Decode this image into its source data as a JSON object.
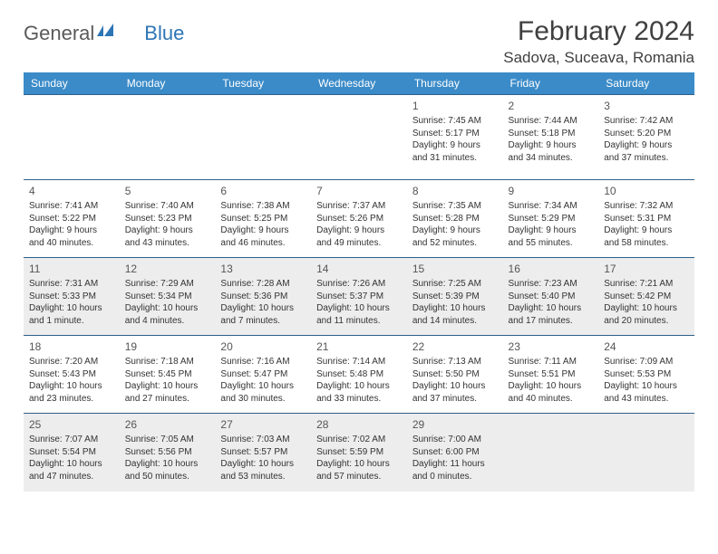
{
  "logo": {
    "text_general": "General",
    "text_blue": "Blue"
  },
  "header": {
    "month_title": "February 2024",
    "location": "Sadova, Suceava, Romania"
  },
  "colors": {
    "header_bg": "#3b8bc8",
    "header_text": "#ffffff",
    "row_border": "#2e5f8a",
    "shade_bg": "#ededed",
    "body_text": "#333333",
    "title_text": "#404040"
  },
  "dayheaders": [
    "Sunday",
    "Monday",
    "Tuesday",
    "Wednesday",
    "Thursday",
    "Friday",
    "Saturday"
  ],
  "weeks": [
    [
      {
        "day": "",
        "lines": []
      },
      {
        "day": "",
        "lines": []
      },
      {
        "day": "",
        "lines": []
      },
      {
        "day": "",
        "lines": []
      },
      {
        "day": "1",
        "lines": [
          "Sunrise: 7:45 AM",
          "Sunset: 5:17 PM",
          "Daylight: 9 hours and 31 minutes."
        ]
      },
      {
        "day": "2",
        "lines": [
          "Sunrise: 7:44 AM",
          "Sunset: 5:18 PM",
          "Daylight: 9 hours and 34 minutes."
        ]
      },
      {
        "day": "3",
        "lines": [
          "Sunrise: 7:42 AM",
          "Sunset: 5:20 PM",
          "Daylight: 9 hours and 37 minutes."
        ]
      }
    ],
    [
      {
        "day": "4",
        "lines": [
          "Sunrise: 7:41 AM",
          "Sunset: 5:22 PM",
          "Daylight: 9 hours and 40 minutes."
        ]
      },
      {
        "day": "5",
        "lines": [
          "Sunrise: 7:40 AM",
          "Sunset: 5:23 PM",
          "Daylight: 9 hours and 43 minutes."
        ]
      },
      {
        "day": "6",
        "lines": [
          "Sunrise: 7:38 AM",
          "Sunset: 5:25 PM",
          "Daylight: 9 hours and 46 minutes."
        ]
      },
      {
        "day": "7",
        "lines": [
          "Sunrise: 7:37 AM",
          "Sunset: 5:26 PM",
          "Daylight: 9 hours and 49 minutes."
        ]
      },
      {
        "day": "8",
        "lines": [
          "Sunrise: 7:35 AM",
          "Sunset: 5:28 PM",
          "Daylight: 9 hours and 52 minutes."
        ]
      },
      {
        "day": "9",
        "lines": [
          "Sunrise: 7:34 AM",
          "Sunset: 5:29 PM",
          "Daylight: 9 hours and 55 minutes."
        ]
      },
      {
        "day": "10",
        "lines": [
          "Sunrise: 7:32 AM",
          "Sunset: 5:31 PM",
          "Daylight: 9 hours and 58 minutes."
        ]
      }
    ],
    [
      {
        "day": "11",
        "lines": [
          "Sunrise: 7:31 AM",
          "Sunset: 5:33 PM",
          "Daylight: 10 hours and 1 minute."
        ]
      },
      {
        "day": "12",
        "lines": [
          "Sunrise: 7:29 AM",
          "Sunset: 5:34 PM",
          "Daylight: 10 hours and 4 minutes."
        ]
      },
      {
        "day": "13",
        "lines": [
          "Sunrise: 7:28 AM",
          "Sunset: 5:36 PM",
          "Daylight: 10 hours and 7 minutes."
        ]
      },
      {
        "day": "14",
        "lines": [
          "Sunrise: 7:26 AM",
          "Sunset: 5:37 PM",
          "Daylight: 10 hours and 11 minutes."
        ]
      },
      {
        "day": "15",
        "lines": [
          "Sunrise: 7:25 AM",
          "Sunset: 5:39 PM",
          "Daylight: 10 hours and 14 minutes."
        ]
      },
      {
        "day": "16",
        "lines": [
          "Sunrise: 7:23 AM",
          "Sunset: 5:40 PM",
          "Daylight: 10 hours and 17 minutes."
        ]
      },
      {
        "day": "17",
        "lines": [
          "Sunrise: 7:21 AM",
          "Sunset: 5:42 PM",
          "Daylight: 10 hours and 20 minutes."
        ]
      }
    ],
    [
      {
        "day": "18",
        "lines": [
          "Sunrise: 7:20 AM",
          "Sunset: 5:43 PM",
          "Daylight: 10 hours and 23 minutes."
        ]
      },
      {
        "day": "19",
        "lines": [
          "Sunrise: 7:18 AM",
          "Sunset: 5:45 PM",
          "Daylight: 10 hours and 27 minutes."
        ]
      },
      {
        "day": "20",
        "lines": [
          "Sunrise: 7:16 AM",
          "Sunset: 5:47 PM",
          "Daylight: 10 hours and 30 minutes."
        ]
      },
      {
        "day": "21",
        "lines": [
          "Sunrise: 7:14 AM",
          "Sunset: 5:48 PM",
          "Daylight: 10 hours and 33 minutes."
        ]
      },
      {
        "day": "22",
        "lines": [
          "Sunrise: 7:13 AM",
          "Sunset: 5:50 PM",
          "Daylight: 10 hours and 37 minutes."
        ]
      },
      {
        "day": "23",
        "lines": [
          "Sunrise: 7:11 AM",
          "Sunset: 5:51 PM",
          "Daylight: 10 hours and 40 minutes."
        ]
      },
      {
        "day": "24",
        "lines": [
          "Sunrise: 7:09 AM",
          "Sunset: 5:53 PM",
          "Daylight: 10 hours and 43 minutes."
        ]
      }
    ],
    [
      {
        "day": "25",
        "lines": [
          "Sunrise: 7:07 AM",
          "Sunset: 5:54 PM",
          "Daylight: 10 hours and 47 minutes."
        ]
      },
      {
        "day": "26",
        "lines": [
          "Sunrise: 7:05 AM",
          "Sunset: 5:56 PM",
          "Daylight: 10 hours and 50 minutes."
        ]
      },
      {
        "day": "27",
        "lines": [
          "Sunrise: 7:03 AM",
          "Sunset: 5:57 PM",
          "Daylight: 10 hours and 53 minutes."
        ]
      },
      {
        "day": "28",
        "lines": [
          "Sunrise: 7:02 AM",
          "Sunset: 5:59 PM",
          "Daylight: 10 hours and 57 minutes."
        ]
      },
      {
        "day": "29",
        "lines": [
          "Sunrise: 7:00 AM",
          "Sunset: 6:00 PM",
          "Daylight: 11 hours and 0 minutes."
        ]
      },
      {
        "day": "",
        "lines": []
      },
      {
        "day": "",
        "lines": []
      }
    ]
  ],
  "shaded_rows": [
    2,
    4
  ]
}
